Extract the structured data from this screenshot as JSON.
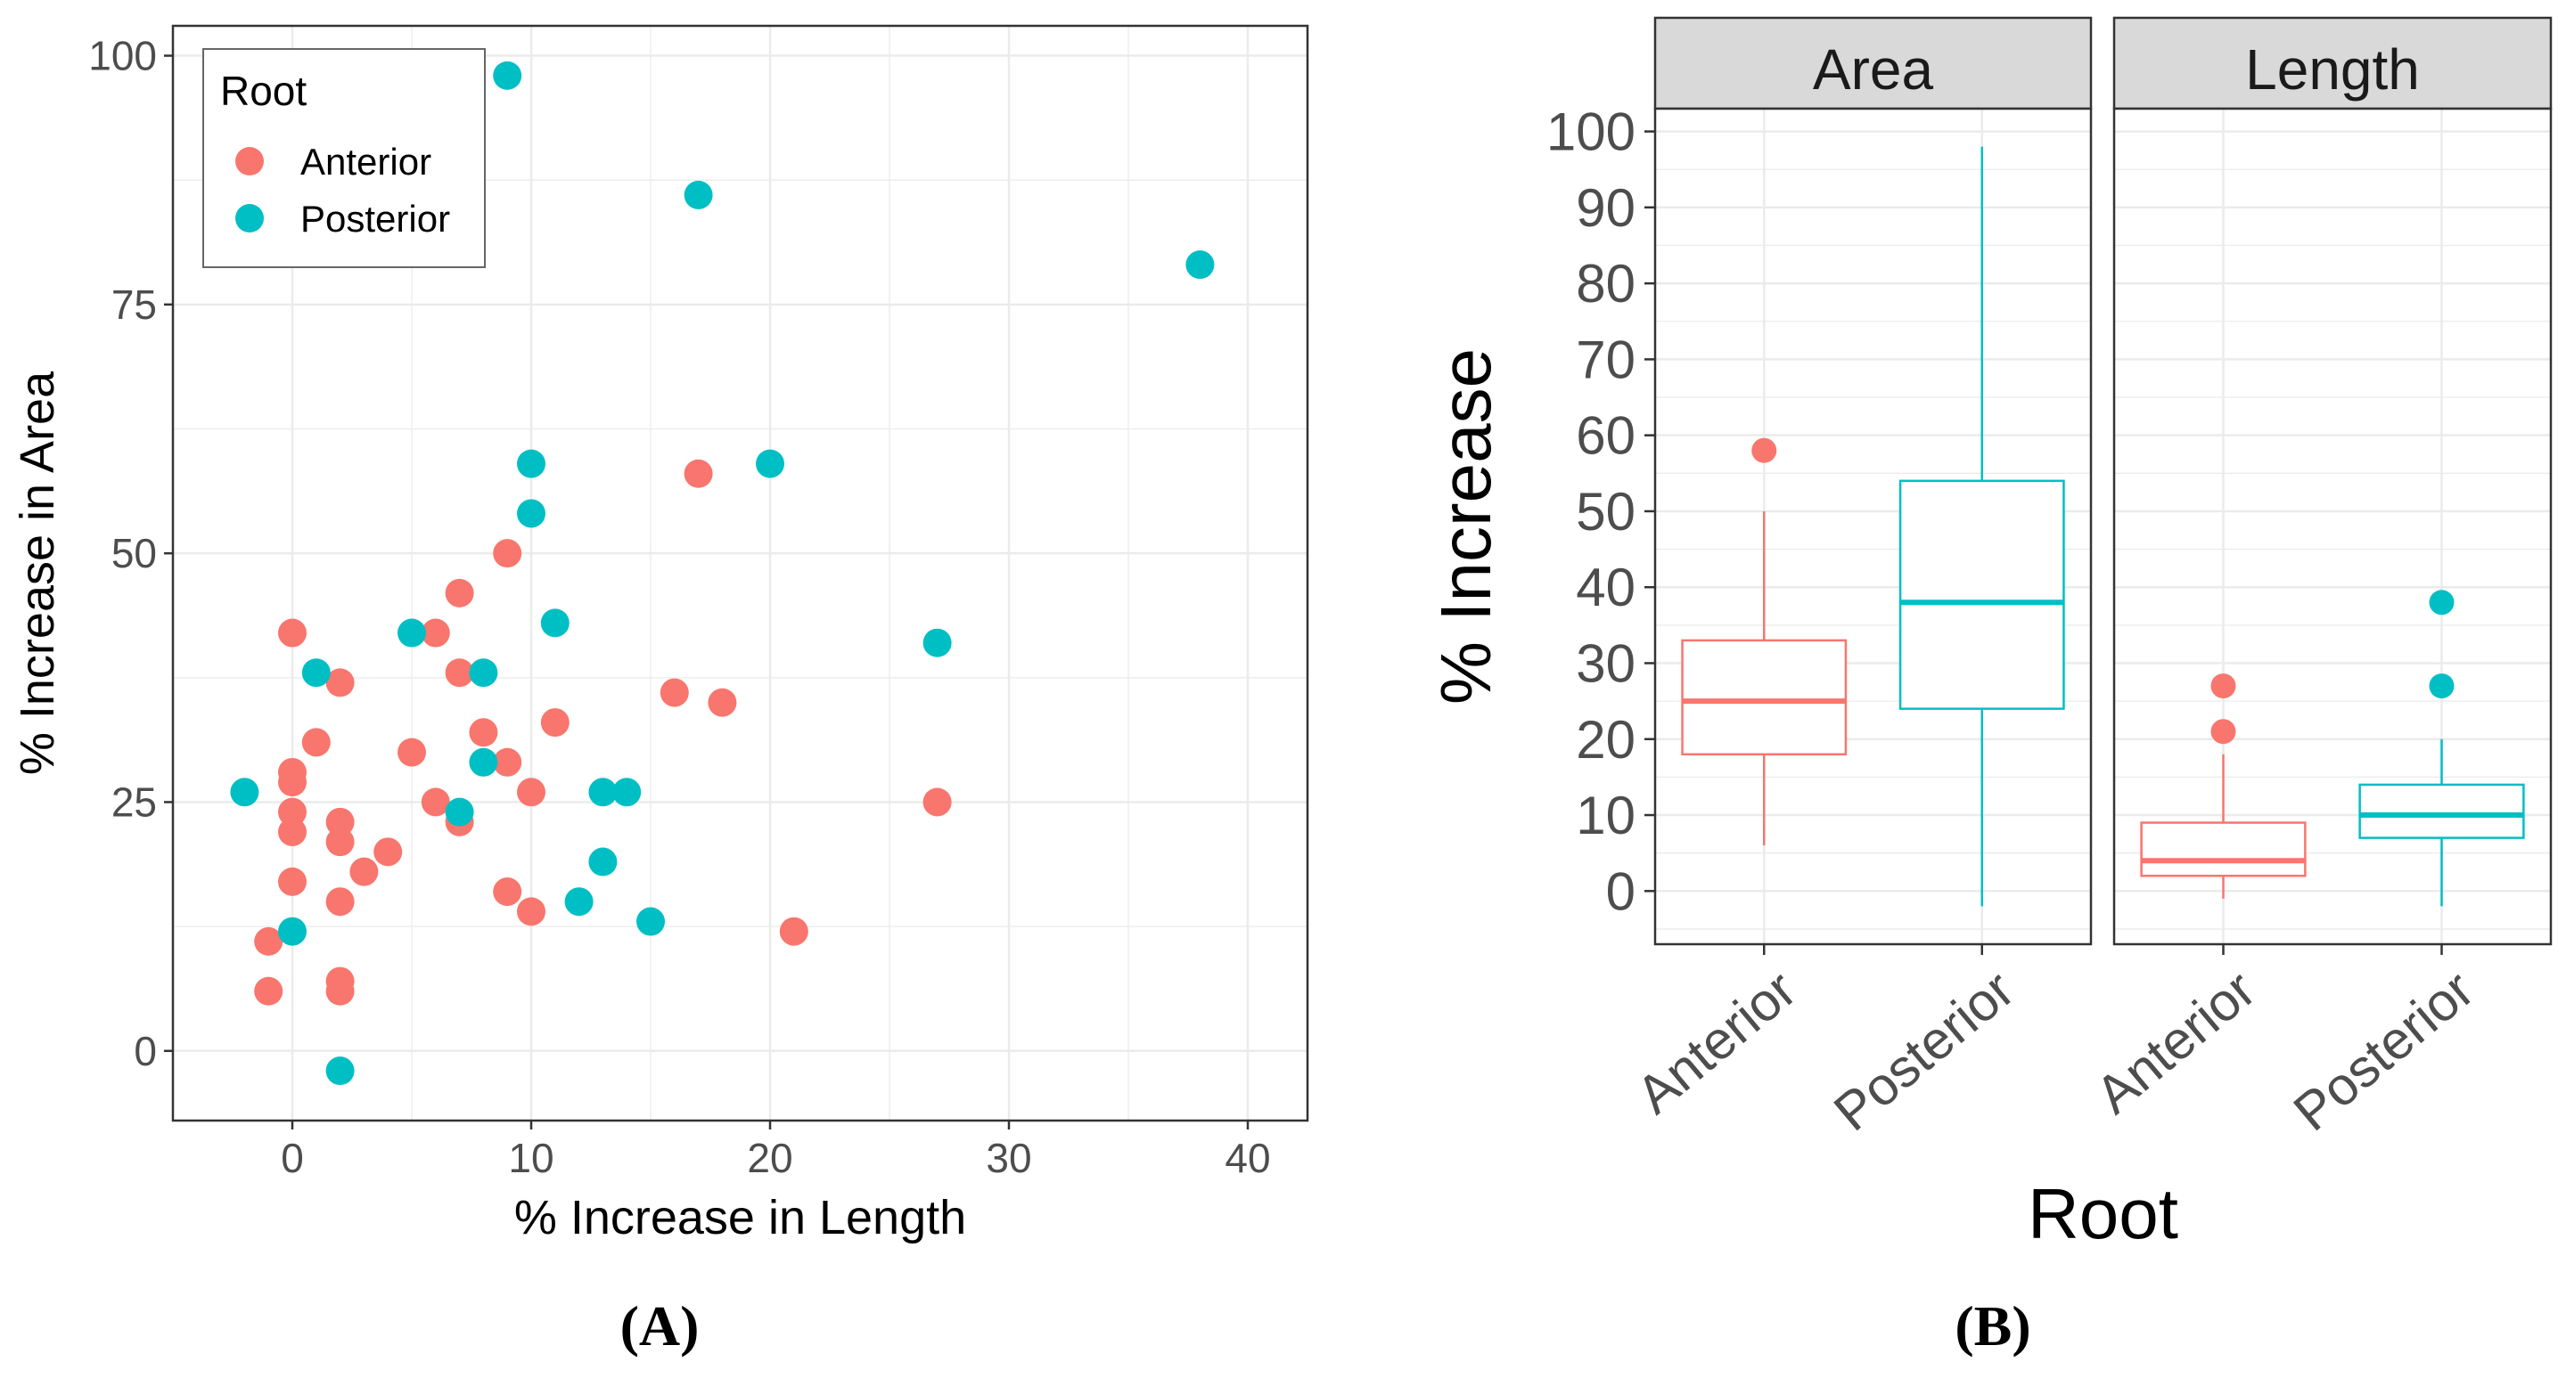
{
  "colors": {
    "anterior": "#F8766D",
    "posterior": "#00BFC4",
    "grid": "#EBEBEB",
    "axis_text": "#4D4D4D",
    "strip_fill": "#D9D9D9"
  },
  "chart_data": [
    {
      "panel": "A",
      "type": "scatter",
      "panel_label": "(A)",
      "xlabel": "% Increase in Length",
      "ylabel": "% Increase in Area",
      "xlim": [
        -5,
        42.5
      ],
      "ylim": [
        -7,
        103
      ],
      "x_ticks": [
        0,
        10,
        20,
        30,
        40
      ],
      "y_ticks": [
        0,
        25,
        50,
        75,
        100
      ],
      "grid": true,
      "legend": {
        "title": "Root",
        "position": "top-left",
        "entries": [
          "Anterior",
          "Posterior"
        ]
      },
      "series": [
        {
          "name": "Anterior",
          "color": "#F8766D",
          "points": [
            [
              -1,
              11
            ],
            [
              -1,
              6
            ],
            [
              0,
              42
            ],
            [
              0,
              28
            ],
            [
              0,
              27
            ],
            [
              0,
              24
            ],
            [
              0,
              22
            ],
            [
              0,
              17
            ],
            [
              1,
              31
            ],
            [
              2,
              37
            ],
            [
              2,
              23
            ],
            [
              2,
              21
            ],
            [
              2,
              15
            ],
            [
              2,
              7
            ],
            [
              2,
              6
            ],
            [
              3,
              18
            ],
            [
              4,
              20
            ],
            [
              5,
              30
            ],
            [
              6,
              42
            ],
            [
              6,
              25
            ],
            [
              7,
              46
            ],
            [
              7,
              38
            ],
            [
              7,
              23
            ],
            [
              8,
              32
            ],
            [
              9,
              50
            ],
            [
              9,
              29
            ],
            [
              9,
              16
            ],
            [
              10,
              26
            ],
            [
              10,
              14
            ],
            [
              11,
              33
            ],
            [
              16,
              36
            ],
            [
              17,
              58
            ],
            [
              18,
              35
            ],
            [
              21,
              12
            ],
            [
              27,
              25
            ]
          ]
        },
        {
          "name": "Posterior",
          "color": "#00BFC4",
          "points": [
            [
              -2,
              26
            ],
            [
              0,
              12
            ],
            [
              1,
              38
            ],
            [
              2,
              -2
            ],
            [
              5,
              42
            ],
            [
              7,
              24
            ],
            [
              8,
              38
            ],
            [
              8,
              29
            ],
            [
              9,
              98
            ],
            [
              10,
              59
            ],
            [
              10,
              54
            ],
            [
              11,
              43
            ],
            [
              12,
              15
            ],
            [
              13,
              26
            ],
            [
              13,
              19
            ],
            [
              14,
              26
            ],
            [
              15,
              13
            ],
            [
              17,
              86
            ],
            [
              20,
              59
            ],
            [
              27,
              41
            ],
            [
              38,
              79
            ]
          ]
        }
      ]
    },
    {
      "panel": "B",
      "type": "box",
      "panel_label": "(B)",
      "xlabel": "Root",
      "ylabel": "% Increase",
      "ylim": [
        -7,
        103
      ],
      "y_ticks": [
        0,
        10,
        20,
        30,
        40,
        50,
        60,
        70,
        80,
        90,
        100
      ],
      "categories": [
        "Anterior",
        "Posterior"
      ],
      "grid": true,
      "facets": [
        {
          "title": "Area",
          "boxes": [
            {
              "category": "Anterior",
              "color": "#F8766D",
              "min": 6,
              "q1": 18,
              "median": 25,
              "q3": 33,
              "max": 50,
              "outliers": [
                58
              ]
            },
            {
              "category": "Posterior",
              "color": "#00BFC4",
              "min": -2,
              "q1": 24,
              "median": 38,
              "q3": 54,
              "max": 98,
              "outliers": []
            }
          ]
        },
        {
          "title": "Length",
          "boxes": [
            {
              "category": "Anterior",
              "color": "#F8766D",
              "min": -1,
              "q1": 2,
              "median": 4,
              "q3": 9,
              "max": 18,
              "outliers": [
                21,
                27
              ]
            },
            {
              "category": "Posterior",
              "color": "#00BFC4",
              "min": -2,
              "q1": 7,
              "median": 10,
              "q3": 14,
              "max": 20,
              "outliers": [
                27,
                38
              ]
            }
          ]
        }
      ]
    }
  ]
}
